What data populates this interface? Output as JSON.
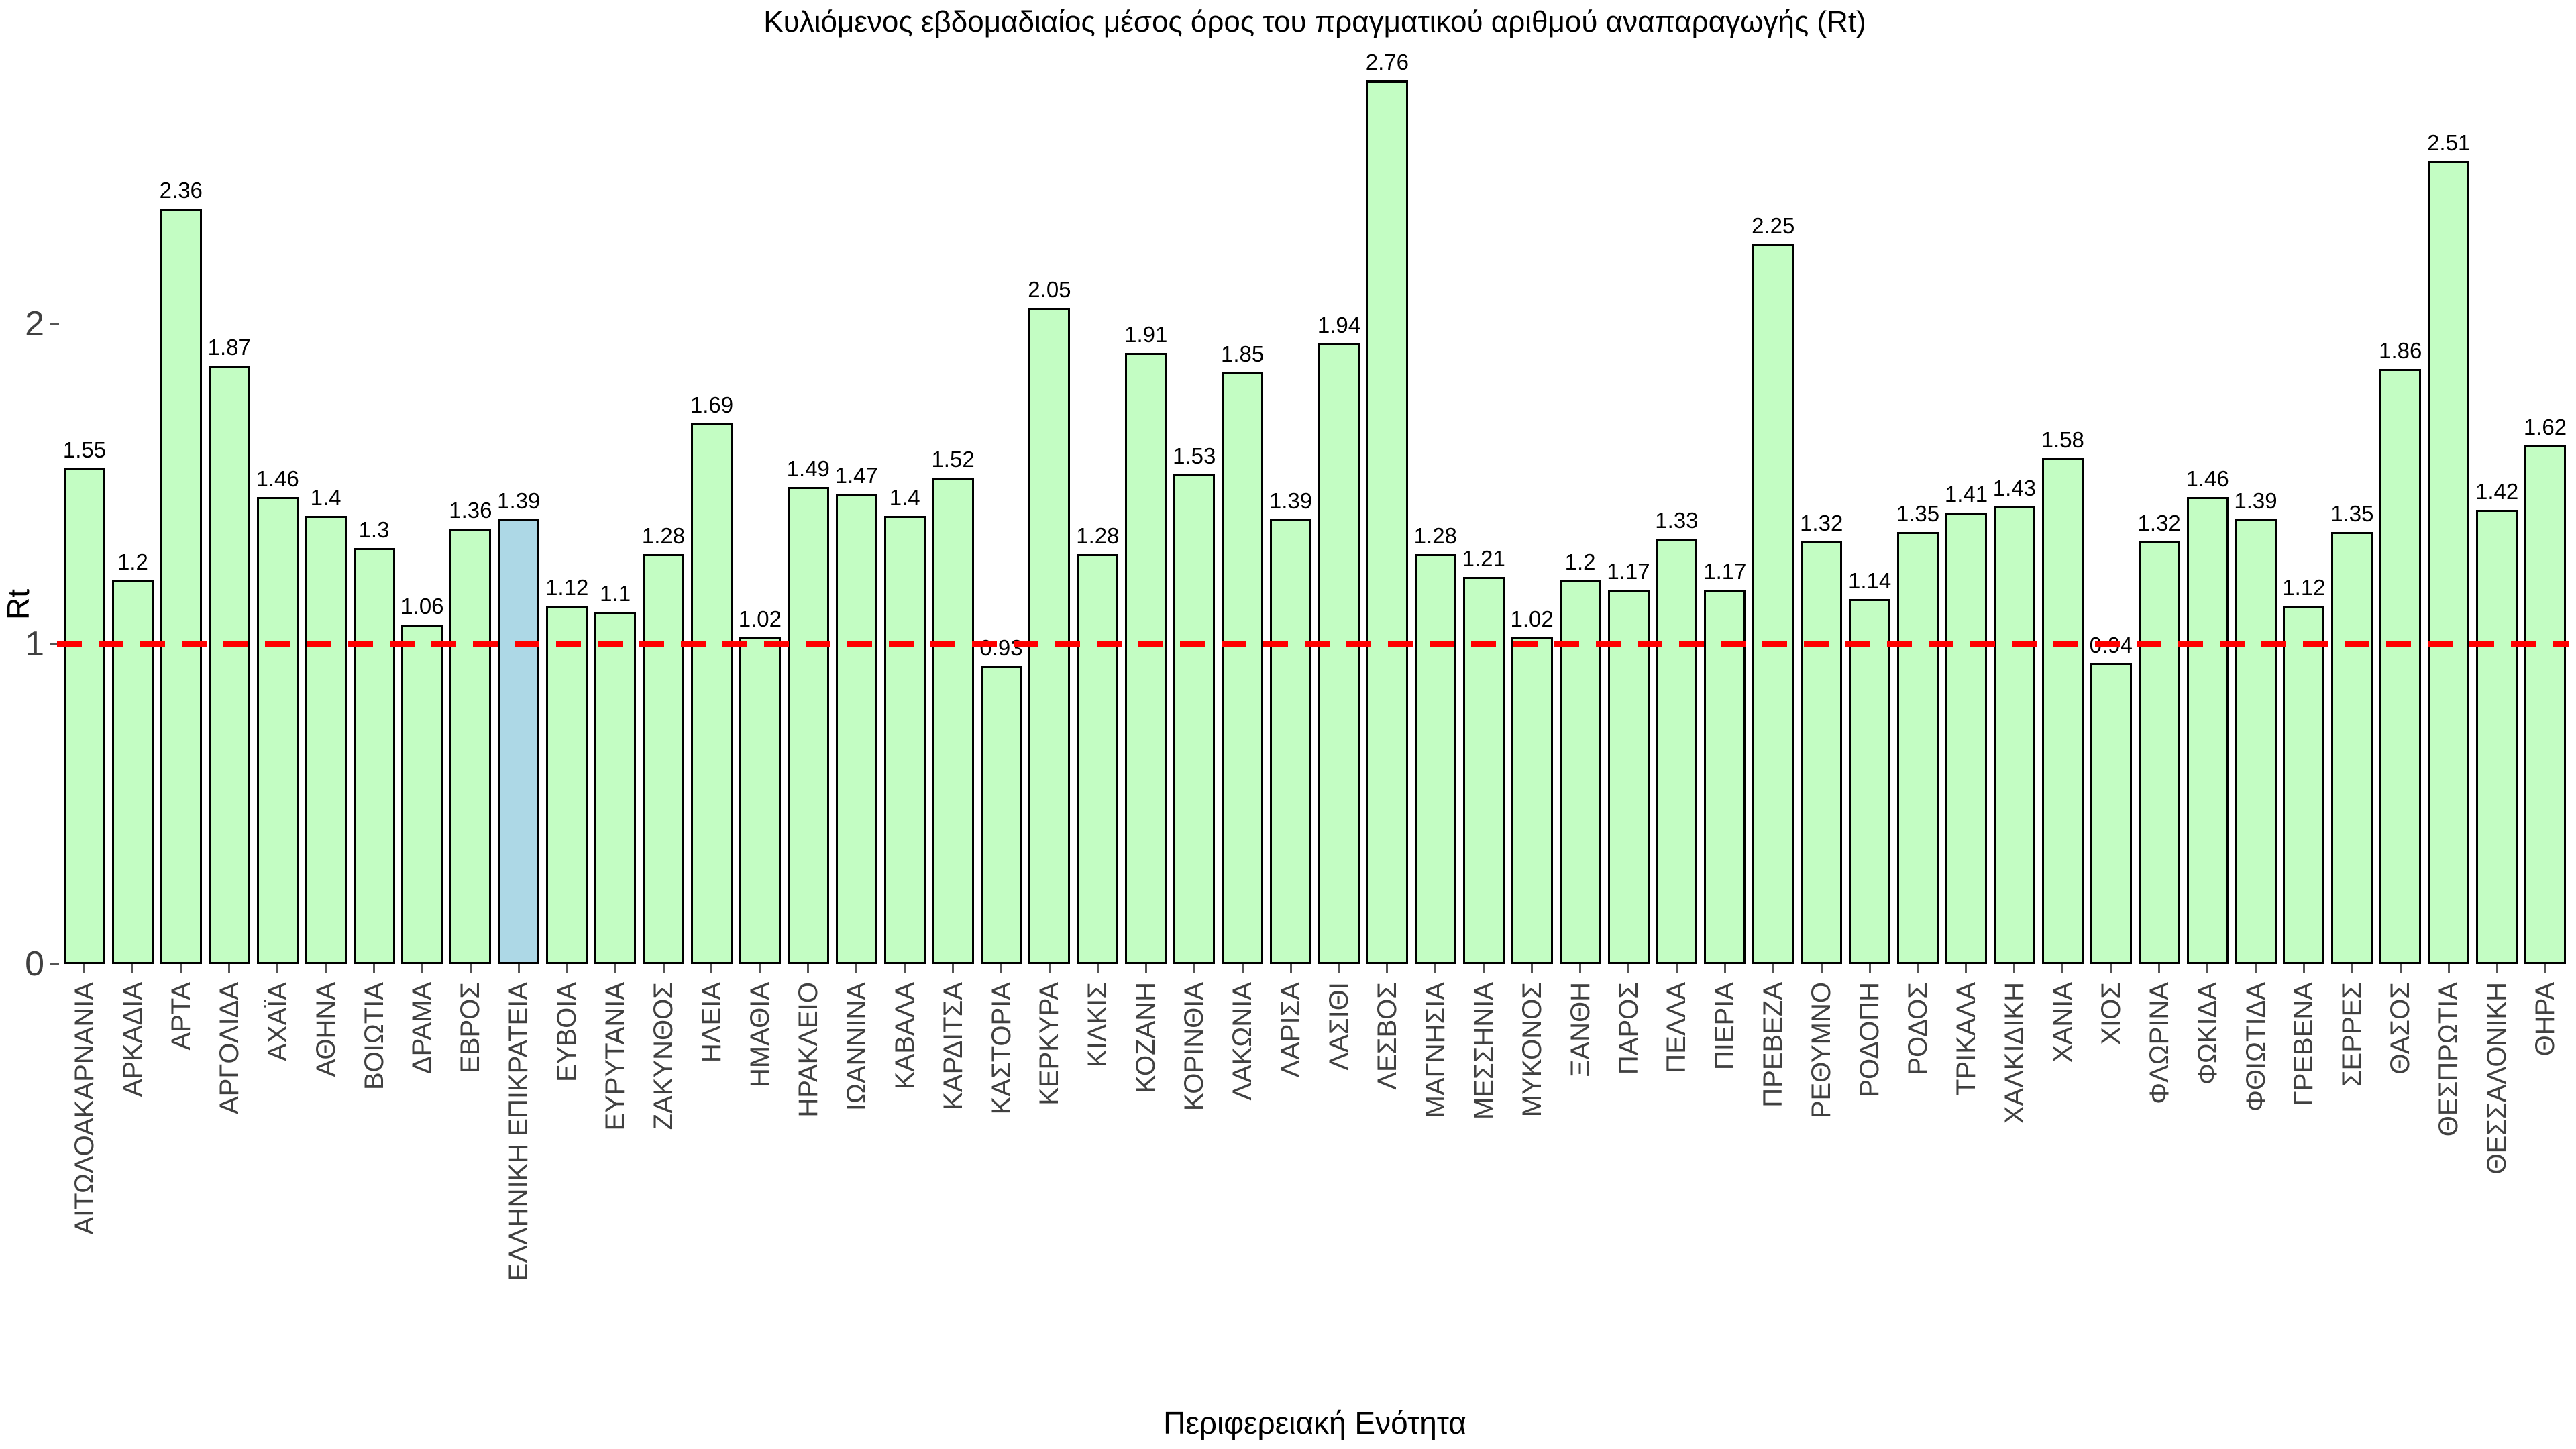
{
  "chart_data": {
    "type": "bar",
    "title": "Κυλιόμενος εβδομαδιαίος μέσος όρος του πραγματικού αριθμού αναπαραγωγής (Rt)",
    "xlabel": "Περιφερειακή Ενότητα",
    "ylabel": "Rt",
    "ylim": [
      0,
      2.95
    ],
    "yticks": [
      0,
      1,
      2
    ],
    "ytick_labels": [
      "0",
      "1",
      "2"
    ],
    "grid": false,
    "legend": "none",
    "reference_line": {
      "y": 1,
      "color": "#ff0000",
      "style": "dashed"
    },
    "bar_color": "#c3fdc3",
    "highlight_color": "#add8e6",
    "edge_color": "#000000",
    "tick_color": "#404040",
    "highlight_index": 9,
    "categories": [
      "ΑΙΤΩΛΟΑΚΑΡΝΑΝΙΑ",
      "ΑΡΚΑΔΙΑ",
      "ΑΡΤΑ",
      "ΑΡΓΟΛΙΔΑ",
      "ΑΧΑΪΑ",
      "ΑΘΗΝΑ",
      "ΒΟΙΩΤΙΑ",
      "ΔΡΑΜΑ",
      "ΕΒΡΟΣ",
      "ΕΛΛΗΝΙΚΗ ΕΠΙΚΡΑΤΕΙΑ",
      "ΕΥΒΟΙΑ",
      "ΕΥΡΥΤΑΝΙΑ",
      "ΖΑΚΥΝΘΟΣ",
      "ΗΛΕΙΑ",
      "ΗΜΑΘΙΑ",
      "ΗΡΑΚΛΕΙΟ",
      "ΙΩΑΝΝΙΝΑ",
      "ΚΑΒΑΛΑ",
      "ΚΑΡΔΙΤΣΑ",
      "ΚΑΣΤΟΡΙΑ",
      "ΚΕΡΚΥΡΑ",
      "ΚΙΛΚΙΣ",
      "ΚΟΖΑΝΗ",
      "ΚΟΡΙΝΘΙΑ",
      "ΛΑΚΩΝΙΑ",
      "ΛΑΡΙΣΑ",
      "ΛΑΣΙΘΙ",
      "ΛΕΣΒΟΣ",
      "ΜΑΓΝΗΣΙΑ",
      "ΜΕΣΣΗΝΙΑ",
      "ΜΥΚΟΝΟΣ",
      "ΞΑΝΘΗ",
      "ΠΑΡΟΣ",
      "ΠΕΛΛΑ",
      "ΠΙΕΡΙΑ",
      "ΠΡΕΒΕΖΑ",
      "ΡΕΘΥΜΝΟ",
      "ΡΟΔΟΠΗ",
      "ΡΟΔΟΣ",
      "ΤΡΙΚΑΛΑ",
      "ΧΑΛΚΙΔΙΚΗ",
      "ΧΑΝΙΑ",
      "ΧΙΟΣ",
      "ΦΛΩΡΙΝΑ",
      "ΦΩΚΙΔΑ",
      "ΦΘΙΩΤΙΔΑ",
      "ΓΡΕΒΕΝΑ",
      "ΣΕΡΡΕΣ",
      "ΘΑΣΟΣ",
      "ΘΕΣΠΡΩΤΙΑ",
      "ΘΕΣΣΑΛΟΝΙΚΗ",
      "ΘΗΡΑ"
    ],
    "values": [
      1.55,
      1.2,
      2.36,
      1.87,
      1.46,
      1.4,
      1.3,
      1.06,
      1.36,
      1.39,
      1.12,
      1.1,
      1.28,
      1.69,
      1.02,
      1.49,
      1.47,
      1.4,
      1.52,
      0.93,
      2.05,
      1.28,
      1.91,
      1.53,
      1.85,
      1.39,
      1.94,
      2.76,
      1.28,
      1.21,
      1.02,
      1.2,
      1.17,
      1.33,
      1.17,
      2.25,
      1.32,
      1.14,
      1.35,
      1.41,
      1.43,
      1.58,
      0.94,
      1.32,
      1.46,
      1.39,
      1.12,
      1.35,
      1.86,
      2.51,
      1.42,
      1.62
    ],
    "value_labels": [
      "1.55",
      "1.2",
      "2.36",
      "1.87",
      "1.46",
      "1.4",
      "1.3",
      "1.06",
      "1.36",
      "1.39",
      "1.12",
      "1.1",
      "1.28",
      "1.69",
      "1.02",
      "1.49",
      "1.47",
      "1.4",
      "1.52",
      "0.93",
      "2.05",
      "1.28",
      "1.91",
      "1.53",
      "1.85",
      "1.39",
      "1.94",
      "2.76",
      "1.28",
      "1.21",
      "1.02",
      "1.2",
      "1.17",
      "1.33",
      "1.17",
      "2.25",
      "1.32",
      "1.14",
      "1.35",
      "1.41",
      "1.43",
      "1.58",
      "0.94",
      "1.32",
      "1.46",
      "1.39",
      "1.12",
      "1.35",
      "1.86",
      "2.51",
      "1.42",
      "1.62"
    ]
  }
}
